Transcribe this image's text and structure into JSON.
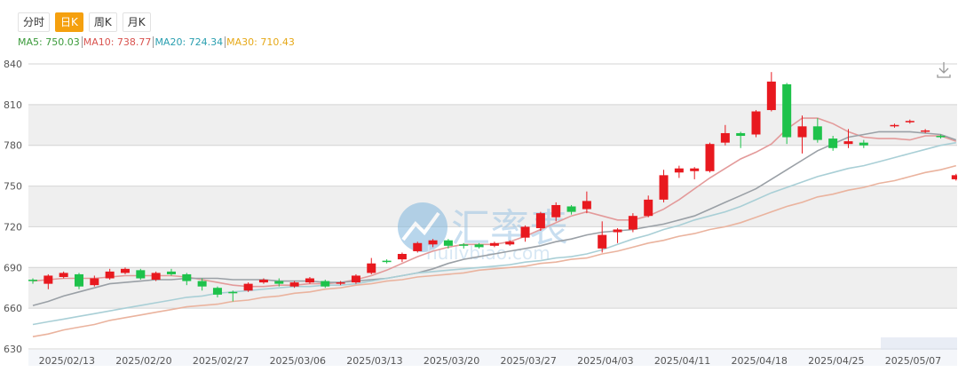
{
  "tabs": [
    "分时",
    "日K",
    "周K",
    "月K"
  ],
  "active_tab": 1,
  "watermark": {
    "brand": "汇率表",
    "site": "huilvbiao.com"
  },
  "chart_data": {
    "type": "candlestick",
    "categories": [
      null,
      "2025/02/13",
      null,
      null,
      null,
      null,
      "2025/02/20",
      null,
      null,
      null,
      null,
      "2025/02/27",
      null,
      null,
      null,
      null,
      "2025/03/06",
      null,
      null,
      null,
      null,
      "2025/03/13",
      null,
      null,
      null,
      null,
      "2025/03/20",
      null,
      null,
      null,
      null,
      "2025/03/27",
      null,
      null,
      null,
      null,
      "2025/04/03",
      null,
      null,
      null,
      null,
      "2025/04/11",
      null,
      null,
      null,
      null,
      "2025/04/18",
      null,
      null,
      null,
      null,
      "2025/04/25",
      null,
      null,
      null,
      null,
      "2025/05/07",
      null,
      null,
      null,
      null
    ],
    "open": [
      681,
      678,
      683,
      685,
      677,
      682,
      686,
      688,
      681,
      687,
      685,
      680,
      675,
      672,
      673,
      679,
      680,
      676,
      679,
      680,
      678,
      679,
      686,
      695,
      696,
      702,
      707,
      710,
      707,
      707,
      706,
      707,
      712,
      719,
      727,
      735,
      733,
      704,
      716,
      718,
      728,
      740,
      760,
      761,
      761,
      782,
      789,
      788,
      806,
      825,
      786,
      794,
      785,
      781,
      782,
      null,
      794,
      797,
      790,
      787,
      755
    ],
    "high": [
      682,
      685,
      687,
      686,
      684,
      689,
      690,
      689,
      687,
      689,
      686,
      682,
      676,
      673,
      679,
      682,
      682,
      680,
      683,
      681,
      680,
      685,
      697,
      696,
      701,
      709,
      711,
      711,
      708,
      708,
      709,
      710,
      721,
      731,
      738,
      736,
      746,
      724,
      719,
      730,
      743,
      762,
      765,
      764,
      782,
      795,
      790,
      806,
      834,
      826,
      802,
      800,
      787,
      792,
      784,
      null,
      796,
      799,
      792,
      788,
      759
    ],
    "low": [
      678,
      674,
      682,
      674,
      676,
      681,
      685,
      681,
      680,
      684,
      677,
      673,
      668,
      665,
      672,
      678,
      676,
      675,
      678,
      675,
      677,
      678,
      685,
      693,
      694,
      701,
      705,
      704,
      704,
      704,
      705,
      706,
      709,
      717,
      724,
      729,
      730,
      701,
      708,
      716,
      727,
      738,
      756,
      755,
      760,
      780,
      778,
      786,
      805,
      781,
      774,
      782,
      776,
      778,
      778,
      null,
      793,
      796,
      789,
      785,
      754
    ],
    "close": [
      680,
      684,
      686,
      676,
      682,
      687,
      689,
      682,
      686,
      685,
      680,
      676,
      670,
      671,
      678,
      681,
      678,
      679,
      682,
      676,
      679,
      684,
      693,
      694,
      700,
      708,
      710,
      706,
      706,
      705,
      708,
      709,
      720,
      730,
      736,
      731,
      739,
      714,
      718,
      728,
      740,
      758,
      763,
      763,
      781,
      789,
      787,
      805,
      827,
      786,
      794,
      784,
      778,
      783,
      780,
      null,
      795,
      798,
      791,
      786,
      758
    ],
    "up_color": "#e8191f",
    "down_color": "#1ec24b",
    "series": [
      {
        "name": "MA5: 750.03",
        "color": "#e39a9a",
        "legend_color": "#3a9a3a",
        "values": [
          680,
          681,
          682,
          682,
          682,
          683,
          684,
          684,
          684,
          684,
          683,
          681,
          679,
          677,
          676,
          676,
          677,
          677,
          678,
          678,
          679,
          681,
          684,
          688,
          693,
          698,
          702,
          705,
          707,
          707,
          707,
          709,
          713,
          718,
          723,
          728,
          731,
          728,
          725,
          725,
          728,
          733,
          740,
          748,
          756,
          763,
          770,
          775,
          781,
          792,
          800,
          800,
          796,
          790,
          786,
          785,
          785,
          784,
          787,
          787,
          783
        ]
      },
      {
        "name": "MA10: 738.77",
        "color": "#9aa0a6",
        "legend_color": "#d9534f",
        "values": [
          662,
          665,
          669,
          672,
          675,
          678,
          679,
          680,
          681,
          681,
          682,
          682,
          682,
          681,
          681,
          681,
          680,
          680,
          680,
          679,
          679,
          680,
          681,
          682,
          684,
          686,
          689,
          693,
          696,
          698,
          700,
          702,
          704,
          706,
          709,
          711,
          714,
          716,
          717,
          718,
          720,
          722,
          725,
          728,
          733,
          738,
          743,
          748,
          755,
          762,
          769,
          776,
          781,
          786,
          788,
          790,
          790,
          790,
          789,
          788,
          784
        ]
      },
      {
        "name": "MA20: 724.34",
        "color": "#a9cfd6",
        "legend_color": "#2a9fb0",
        "values": [
          648,
          650,
          652,
          654,
          656,
          658,
          660,
          662,
          664,
          666,
          668,
          669,
          671,
          672,
          673,
          674,
          675,
          676,
          676,
          677,
          677,
          678,
          680,
          682,
          684,
          686,
          687,
          688,
          689,
          690,
          691,
          692,
          694,
          695,
          697,
          698,
          700,
          703,
          707,
          711,
          714,
          718,
          721,
          725,
          728,
          731,
          735,
          740,
          745,
          749,
          753,
          757,
          760,
          763,
          765,
          768,
          771,
          774,
          777,
          780,
          782
        ]
      },
      {
        "name": "MA30: 710.43",
        "color": "#eab39e",
        "legend_color": "#e6a817",
        "values": [
          639,
          641,
          644,
          646,
          648,
          651,
          653,
          655,
          657,
          659,
          661,
          662,
          663,
          665,
          666,
          668,
          669,
          671,
          672,
          674,
          675,
          677,
          678,
          680,
          681,
          683,
          684,
          685,
          686,
          688,
          689,
          690,
          691,
          693,
          694,
          696,
          697,
          700,
          702,
          705,
          708,
          710,
          713,
          715,
          718,
          720,
          723,
          727,
          731,
          735,
          738,
          742,
          744,
          747,
          749,
          752,
          754,
          757,
          760,
          762,
          765
        ]
      }
    ],
    "ylim": [
      630,
      840
    ],
    "yticks": [
      630,
      660,
      690,
      720,
      750,
      780,
      810,
      840
    ],
    "grid": true
  }
}
